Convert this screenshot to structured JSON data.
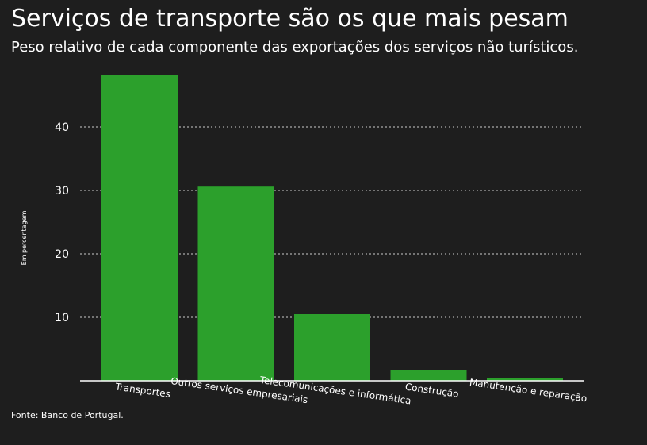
{
  "chart_data": {
    "type": "bar",
    "title": "Serviços de transporte são os que mais pesam",
    "subtitle": "Peso relativo de cada componente das exportações dos serviços não turísticos.",
    "ylabel": "Em percentagem",
    "xlabel": "",
    "categories": [
      "Transportes",
      "Outros serviços empresariais",
      "Telecomunicações e informática",
      "Construção",
      "Manutenção e reparação"
    ],
    "values": [
      48.2,
      30.6,
      10.5,
      1.7,
      0.5
    ],
    "yticks": [
      10,
      20,
      30,
      40
    ],
    "ylim": [
      0,
      50
    ],
    "grid": true,
    "legend": "none",
    "source": "Fonte: Banco de Portugal.",
    "colors": {
      "bar": "#2ca02c",
      "background": "#1e1e1e",
      "text": "#ffffff",
      "grid": "#cccccc"
    }
  }
}
